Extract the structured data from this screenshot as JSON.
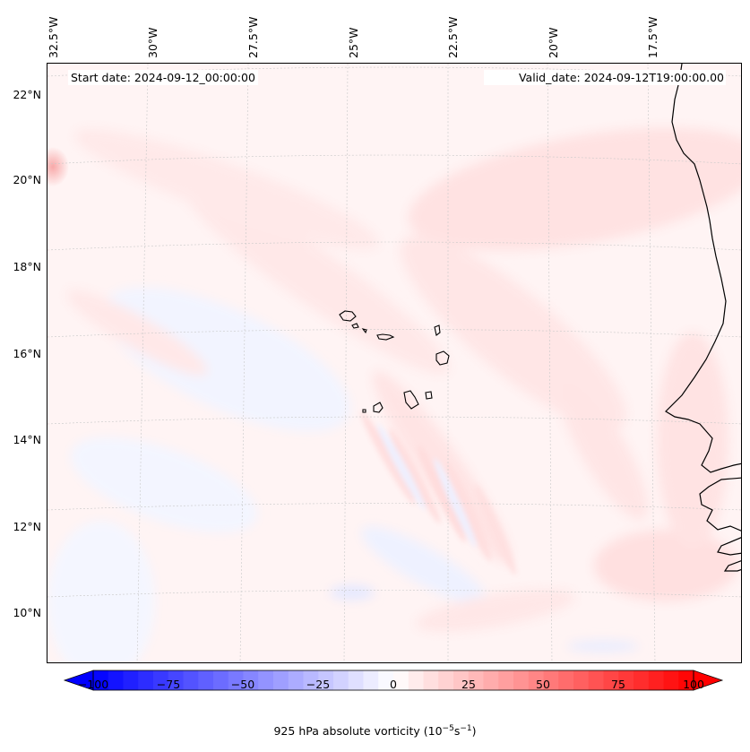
{
  "map": {
    "start_date": "Start date: 2024-09-12_00:00:00",
    "valid_date": "Valid_date: 2024-09-12T19:00:00.00",
    "longitude_labels": [
      "32.5°W",
      "30°W",
      "27.5°W",
      "25°W",
      "22.5°W",
      "20°W",
      "17.5°W"
    ],
    "latitude_labels": [
      "22°N",
      "20°N",
      "18°N",
      "16°N",
      "14°N",
      "12°N",
      "10°N"
    ],
    "gridlines": true,
    "projection": "conic"
  },
  "colorbar": {
    "ticks": [
      "−100",
      "−75",
      "−50",
      "−25",
      "0",
      "25",
      "50",
      "75",
      "100"
    ],
    "range": [
      -100,
      100
    ],
    "colormap": "bwr",
    "extend": "both",
    "label_prefix": "925 hPa absolute vorticity (10",
    "label_exp1": "−5",
    "label_mid": "s",
    "label_exp2": "−1",
    "label_suffix": ")",
    "colors": {
      "negative": "#0000ff",
      "zero": "#ffffff",
      "positive": "#ff0000"
    }
  }
}
